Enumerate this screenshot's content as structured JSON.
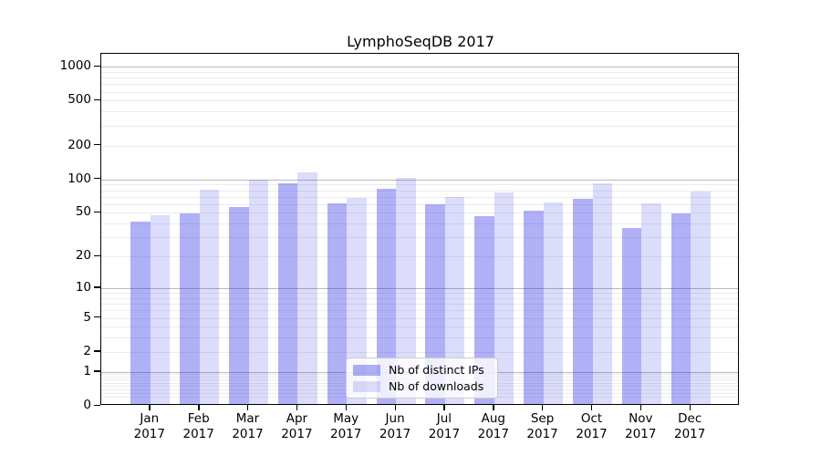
{
  "title": "LymphoSeqDB 2017",
  "chart_data": {
    "type": "bar",
    "title": "LymphoSeqDB 2017",
    "categories": [
      "Jan 2017",
      "Feb 2017",
      "Mar 2017",
      "Apr 2017",
      "May 2017",
      "Jun 2017",
      "Jul 2017",
      "Aug 2017",
      "Sep 2017",
      "Oct 2017",
      "Nov 2017",
      "Dec 2017"
    ],
    "series": [
      {
        "name": "Nb of distinct IPs",
        "color": "rgba(40,40,230,0.37)",
        "values": [
          40,
          48,
          54,
          88,
          59,
          80,
          58,
          45,
          50,
          64,
          35,
          48
        ]
      },
      {
        "name": "Nb of downloads",
        "color": "rgba(40,40,230,0.16)",
        "values": [
          46,
          78,
          95,
          111,
          66,
          99,
          67,
          74,
          60,
          88,
          59,
          75
        ]
      }
    ],
    "xlabel": "",
    "ylabel": "",
    "yscale": "symlog",
    "ylim": [
      0,
      1300
    ],
    "yticks": [
      0,
      1,
      2,
      5,
      10,
      20,
      50,
      100,
      200,
      500,
      1000
    ],
    "major_gridlines": [
      1,
      10,
      100,
      1000
    ],
    "grid": "both",
    "legend_position": "lower-center",
    "colors": {
      "grid_major": "#b9b9b9",
      "grid_minor": "#ececec",
      "spine": "#000000",
      "text": "#000000"
    }
  }
}
